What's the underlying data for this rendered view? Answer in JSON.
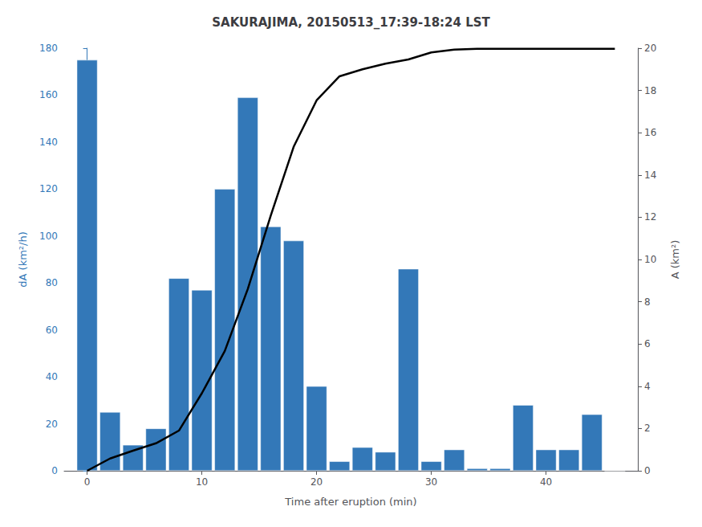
{
  "chart_data": {
    "type": "bar",
    "title": "SAKURAJIMA, 20150513_17:39-18:24 LST",
    "xlabel": "Time after eruption (min)",
    "ylabel": "dA (km²/h)",
    "y2label": "A (km²)",
    "x": [
      0,
      2,
      4,
      6,
      8,
      10,
      12,
      14,
      16,
      18,
      20,
      22,
      24,
      26,
      28,
      30,
      32,
      34,
      36,
      38,
      40,
      42,
      44,
      46
    ],
    "xlim": [
      -2,
      48
    ],
    "xticks": [
      0,
      10,
      20,
      30,
      40
    ],
    "ylim": [
      0,
      180
    ],
    "yticks": [
      0,
      20,
      40,
      60,
      80,
      100,
      120,
      140,
      160,
      180
    ],
    "y2lim": [
      0,
      20
    ],
    "y2ticks": [
      0,
      2,
      4,
      6,
      8,
      10,
      12,
      14,
      16,
      18,
      20
    ],
    "grid": false,
    "series": [
      {
        "type": "bar",
        "color": "#3378b8",
        "values": [
          175,
          25,
          11,
          18,
          82,
          77,
          120,
          159,
          104,
          98,
          36,
          4,
          10,
          8,
          86,
          4,
          9,
          1,
          1,
          28,
          9,
          9,
          24,
          0
        ]
      },
      {
        "type": "line",
        "color": "black",
        "axis": "y2",
        "values": [
          0.0,
          0.58,
          0.95,
          1.3,
          1.9,
          3.67,
          5.67,
          8.6,
          12.07,
          15.33,
          17.53,
          18.67,
          19.0,
          19.27,
          19.47,
          19.8,
          19.93,
          19.97,
          19.97,
          19.97,
          19.97,
          19.97,
          19.97,
          19.97
        ]
      }
    ]
  }
}
